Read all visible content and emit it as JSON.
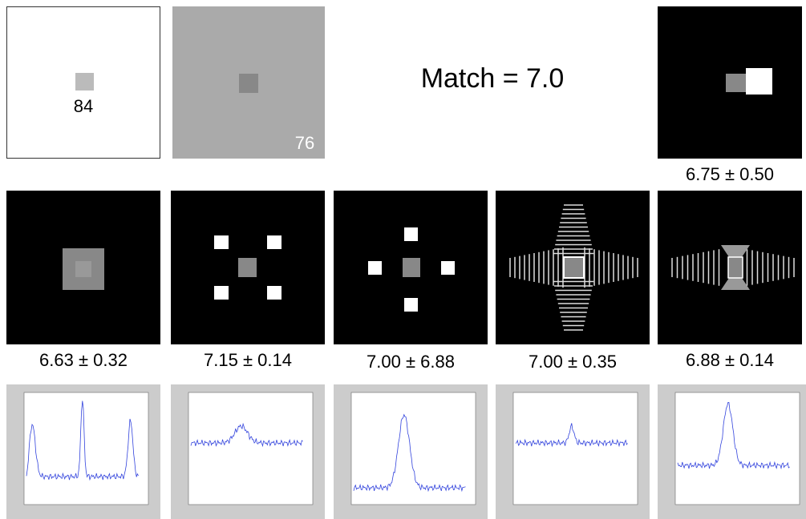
{
  "stimuli": {
    "white_panel_label": "84",
    "gray_panel_label": "76"
  },
  "match_label": "Match = 7.0",
  "results": [
    "6.75 ± 0.50",
    "6.63 ± 0.32",
    "7.15 ± 0.14",
    "7.00 ± 6.88",
    "7.00 ± 0.35",
    "6.88 ± 0.14"
  ]
}
